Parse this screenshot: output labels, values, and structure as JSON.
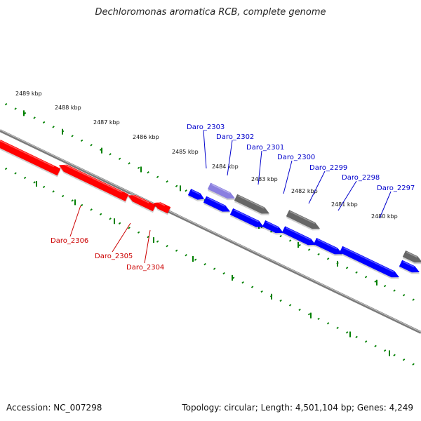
{
  "title": "Dechloromonas aromatica RCB, complete genome",
  "footer": {
    "accession": "Accession: NC_007298",
    "summary": "Topology: circular; Length: 4,501,104 bp; Genes: 4,249"
  },
  "colors": {
    "reverse_strand": "#ff0000",
    "forward_strand": "#0000ff",
    "selected_gene": "#8a7fe0",
    "other_feature": "#666666",
    "ruler": "#008000",
    "backbone": "#7a7a7a",
    "reverse_label": "#cc0000",
    "forward_label": "#0000cc"
  },
  "ruler_kbp": [
    "2489 kbp",
    "2488 kbp",
    "2487 kbp",
    "2486 kbp",
    "2485 kbp",
    "2484 kbp",
    "2483 kbp",
    "2482 kbp",
    "2481 kbp",
    "2480 kbp"
  ],
  "genes": [
    {
      "name": "Daro_2306",
      "strand": "reverse",
      "kind": "cds"
    },
    {
      "name": "Daro_2305",
      "strand": "reverse",
      "kind": "cds"
    },
    {
      "name": "Daro_2304",
      "strand": "reverse",
      "kind": "cds"
    },
    {
      "name": "Daro_2303",
      "strand": "forward",
      "kind": "cds"
    },
    {
      "name": "Daro_2302",
      "strand": "forward",
      "kind": "selected"
    },
    {
      "name": "Daro_2301",
      "strand": "forward",
      "kind": "other"
    },
    {
      "name": "Daro_2300",
      "strand": "forward",
      "kind": "cds"
    },
    {
      "name": "Daro_2299",
      "strand": "forward",
      "kind": "other"
    },
    {
      "name": "Daro_2298",
      "strand": "forward",
      "kind": "cds"
    },
    {
      "name": "Daro_2297",
      "strand": "forward",
      "kind": "cds"
    }
  ]
}
